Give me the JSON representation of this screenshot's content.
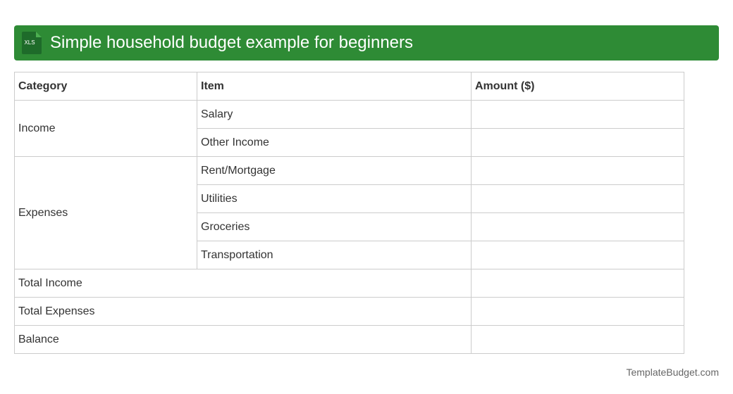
{
  "header": {
    "icon": "XLS",
    "title": "Simple household budget example for beginners"
  },
  "table": {
    "columns": [
      "Category",
      "Item",
      "Amount ($)"
    ],
    "groups": [
      {
        "category": "Income",
        "items": [
          "Salary",
          "Other Income"
        ]
      },
      {
        "category": "Expenses",
        "items": [
          "Rent/Mortgage",
          "Utilities",
          "Groceries",
          "Transportation"
        ]
      }
    ],
    "totals": [
      "Total Income",
      "Total Expenses",
      "Balance"
    ]
  },
  "footer": {
    "source": "TemplateBudget.com"
  }
}
